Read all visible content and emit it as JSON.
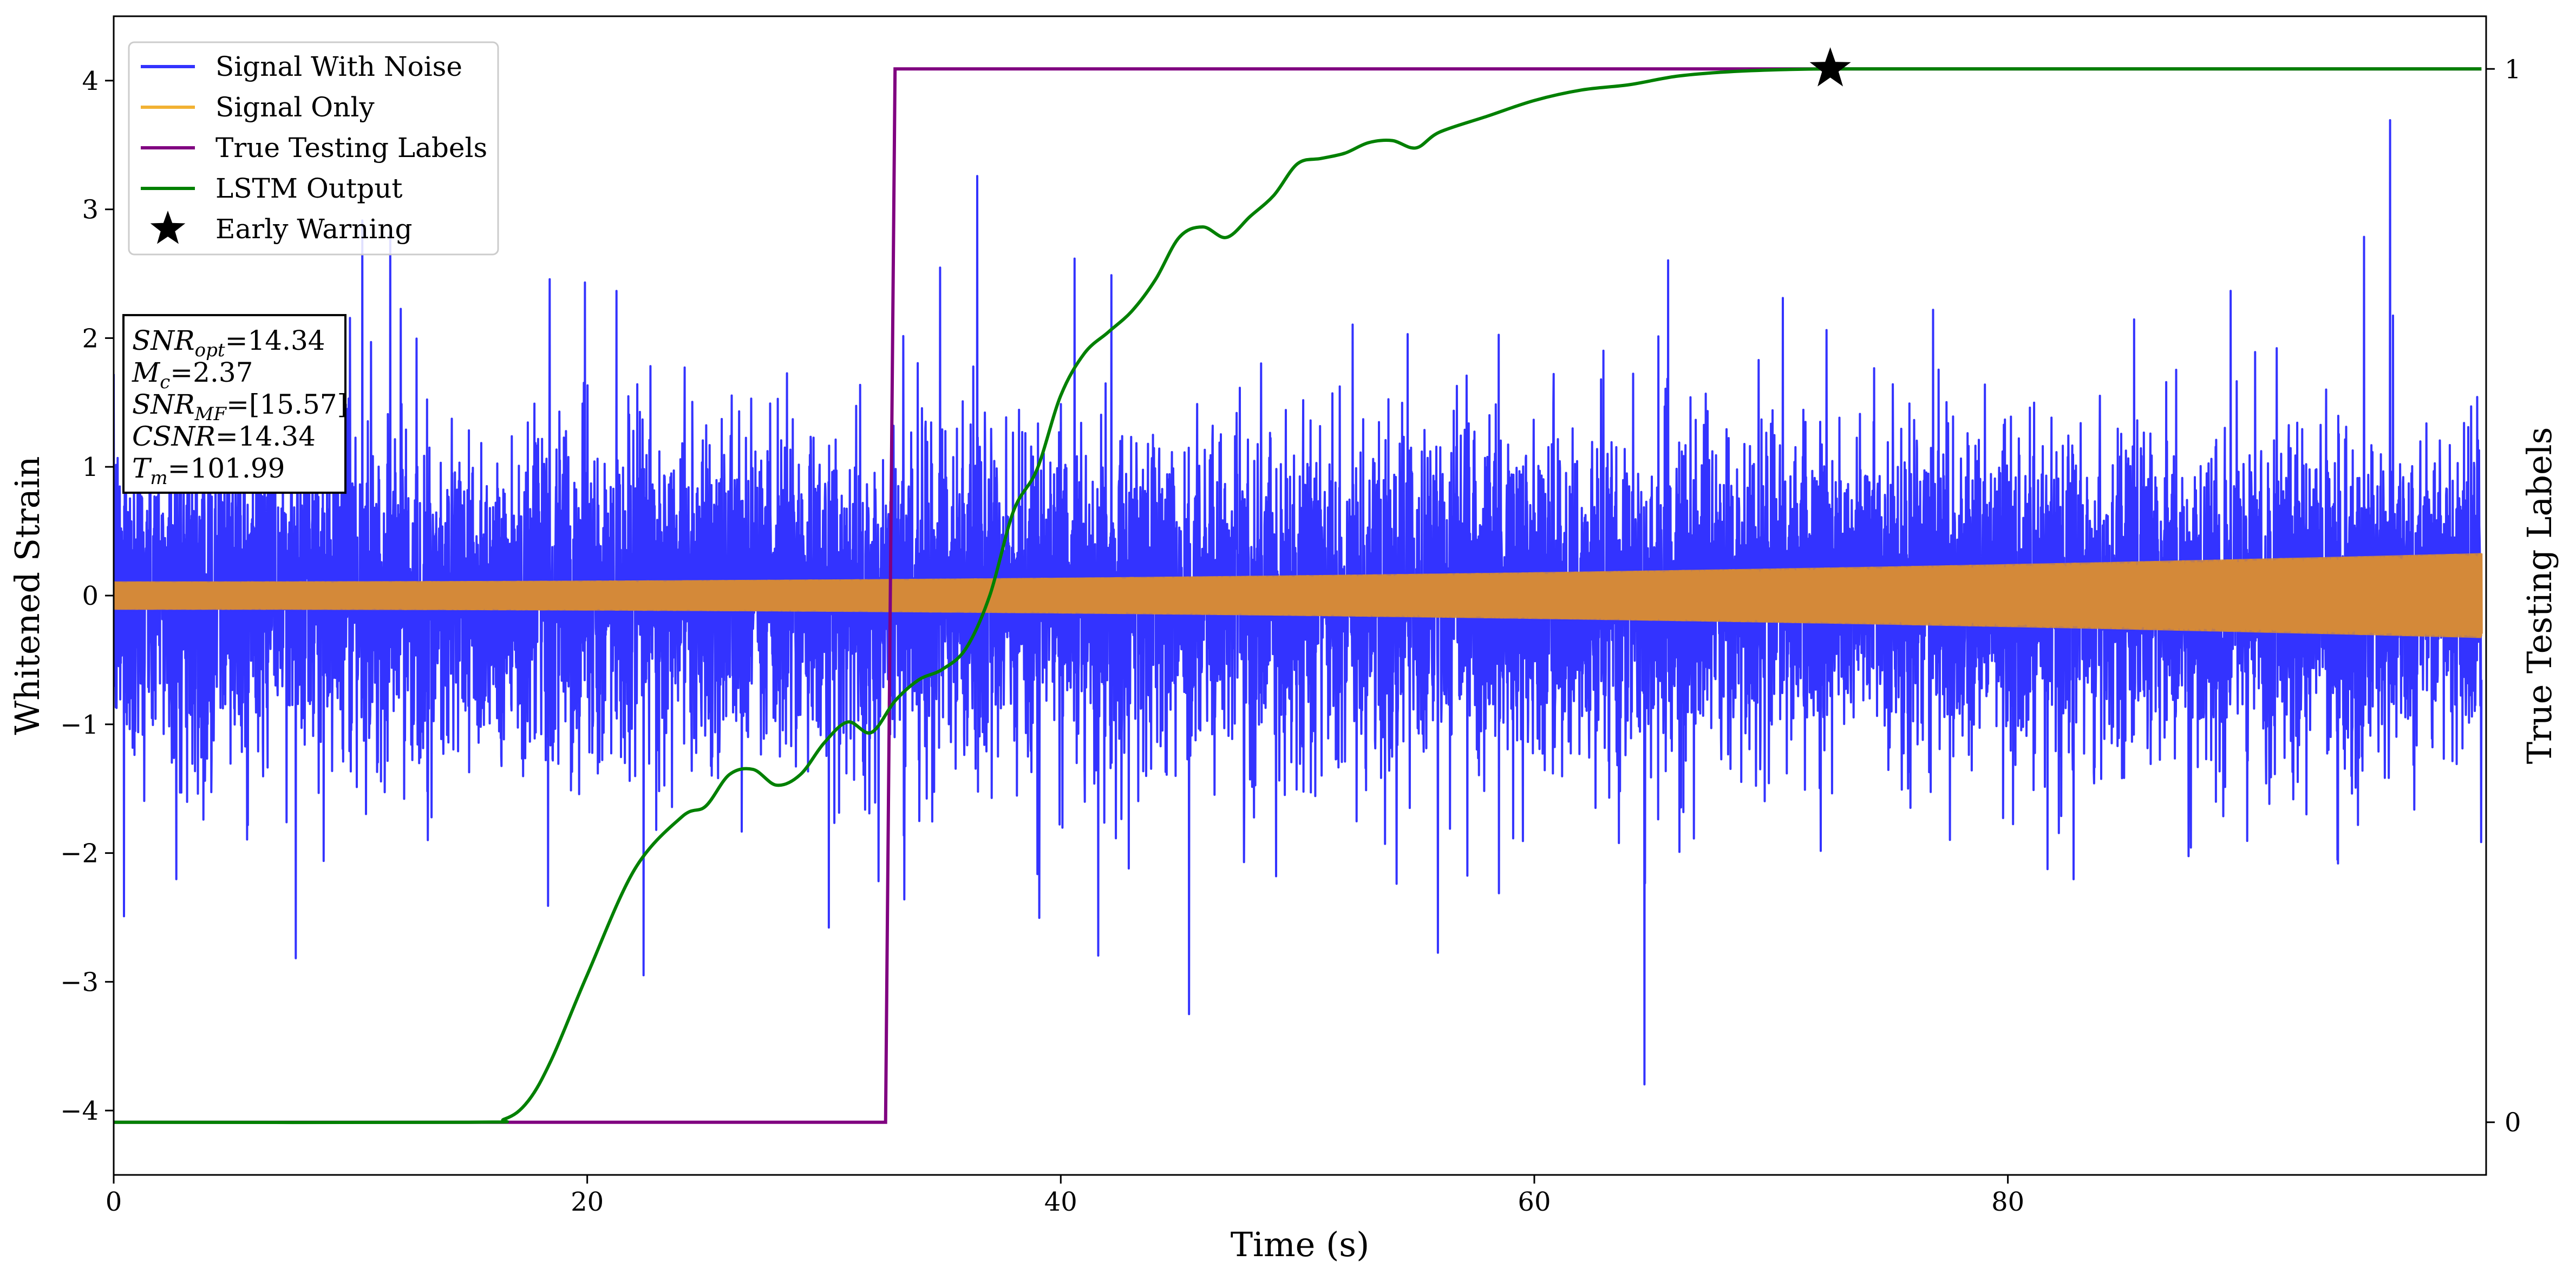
{
  "chart_data": {
    "type": "line",
    "xlabel": "Time (s)",
    "ylabel": "Whitened Strain",
    "ylabel_right": "True Testing Labels",
    "xlim": [
      0,
      100.2
    ],
    "ylim": [
      -4.5,
      4.5
    ],
    "ylim_right": [
      -0.05,
      1.05
    ],
    "xticks": [
      0,
      20,
      40,
      60,
      80
    ],
    "yticks": [
      -4,
      -3,
      -2,
      -1,
      0,
      1,
      2,
      3,
      4
    ],
    "yticks_right": [
      0,
      1
    ],
    "grid": false,
    "legend_position": "top-left",
    "legend": [
      {
        "label": "Signal With Noise",
        "color": "#3333ff",
        "kind": "line"
      },
      {
        "label": "Signal Only",
        "color": "#f2b233",
        "kind": "line"
      },
      {
        "label": "True Testing Labels",
        "color": "#800080",
        "kind": "line"
      },
      {
        "label": "LSTM Output",
        "color": "#008000",
        "kind": "line"
      },
      {
        "label": "Early Warning",
        "color": "#000000",
        "kind": "star"
      }
    ],
    "info_box": [
      {
        "base": "SNR",
        "sub": "opt",
        "value": "=14.34"
      },
      {
        "base": "M",
        "sub": "c",
        "value": "=2.37"
      },
      {
        "base": "SNR",
        "sub": "MF",
        "value": "=[15.57]"
      },
      {
        "base": "CSNR",
        "sub": "",
        "value": "=14.34"
      },
      {
        "base": "T",
        "sub": "m",
        "value": "=101.99"
      }
    ],
    "series": [
      {
        "name": "Signal With Noise",
        "axis": "left",
        "color": "#3333ff",
        "description_range": [
          -4.05,
          3.85
        ],
        "typical_band": [
          -1.3,
          1.3
        ]
      },
      {
        "name": "Signal Only",
        "axis": "left",
        "color": "#f2b233",
        "amplitude_start": 0.11,
        "amplitude_end": 0.33
      },
      {
        "name": "True Testing Labels",
        "axis": "right",
        "color": "#800080",
        "x": [
          0,
          32.6,
          33.0,
          100.0
        ],
        "y": [
          0,
          0,
          1,
          1
        ]
      },
      {
        "name": "LSTM Output",
        "axis": "right",
        "color": "#008000",
        "x": [
          0,
          15,
          16.5,
          17.5,
          18.5,
          20,
          22,
          24,
          25,
          26,
          27,
          28,
          29,
          30,
          31,
          32,
          33,
          34,
          35,
          36,
          37,
          38,
          39,
          40,
          41,
          42,
          43,
          44,
          45,
          46,
          47,
          48,
          49,
          50,
          51,
          52,
          53,
          54,
          55,
          56,
          58,
          60,
          62,
          64,
          66,
          68,
          70,
          72.5,
          76,
          80,
          90,
          100
        ],
        "y": [
          0,
          0,
          0.003,
          0.02,
          0.06,
          0.14,
          0.24,
          0.29,
          0.3,
          0.33,
          0.335,
          0.32,
          0.33,
          0.36,
          0.38,
          0.37,
          0.4,
          0.42,
          0.43,
          0.45,
          0.5,
          0.58,
          0.62,
          0.69,
          0.73,
          0.75,
          0.77,
          0.8,
          0.84,
          0.85,
          0.84,
          0.86,
          0.88,
          0.91,
          0.915,
          0.92,
          0.93,
          0.932,
          0.925,
          0.94,
          0.955,
          0.97,
          0.98,
          0.985,
          0.993,
          0.997,
          0.999,
          1.0,
          1.0,
          1.0,
          1.0,
          1.0
        ]
      }
    ],
    "early_warning": {
      "x": 72.5,
      "y": 1.0,
      "axis": "right"
    }
  }
}
